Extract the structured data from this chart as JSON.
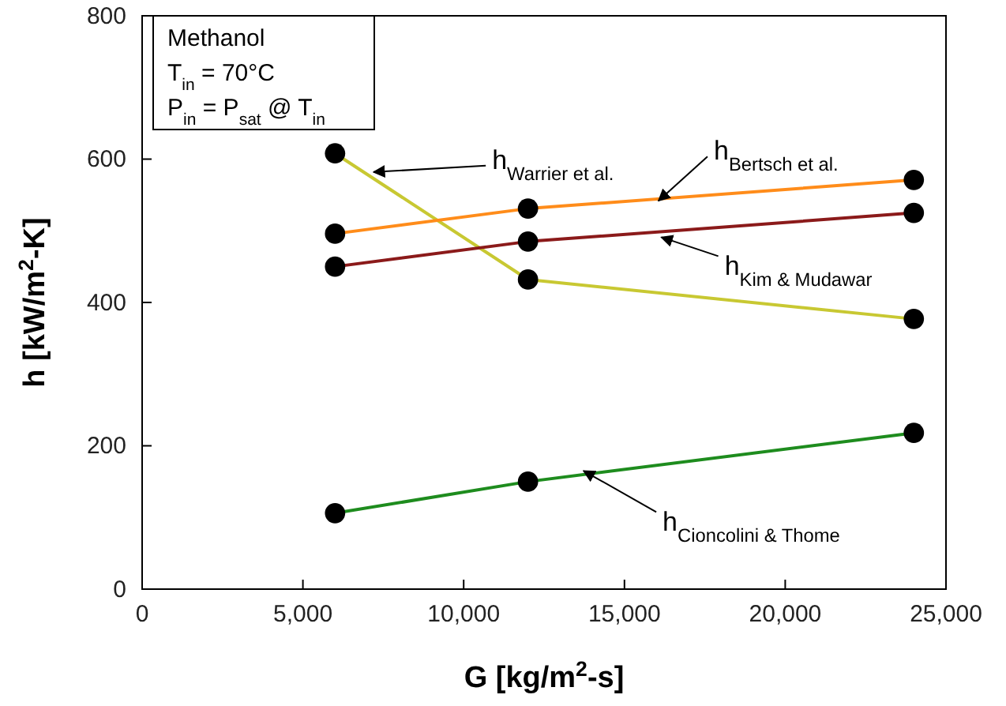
{
  "chart_data": {
    "type": "line",
    "xlabel": "G [kg/m$^{2}$-s]",
    "ylabel": "h [kW/m$^{2}$-K]",
    "series": [
      {
        "color": "#c8c832",
        "x": [
          6000,
          12000,
          24000
        ],
        "values": [
          608,
          432,
          377
        ]
      },
      {
        "color": "#ff8c1a",
        "x": [
          6000,
          12000,
          24000
        ],
        "values": [
          496,
          531,
          571
        ]
      },
      {
        "color": "#8b1a1a",
        "x": [
          6000,
          12000,
          24000
        ],
        "values": [
          450,
          485,
          525
        ]
      },
      {
        "color": "#1e8c1e",
        "x": [
          6000,
          12000,
          24000
        ],
        "values": [
          106,
          150,
          218
        ]
      }
    ],
    "marker": "circle",
    "line_style": "solid",
    "grid": false,
    "xlim": [
      0,
      25000
    ],
    "ylim": [
      0,
      800
    ],
    "xticks": [
      0,
      {
        "value": 5000,
        "label": "5,000"
      },
      {
        "value": 10000,
        "label": "10,000"
      },
      {
        "value": 15000,
        "label": "15,000"
      },
      {
        "value": 20000,
        "label": "20,000"
      },
      {
        "value": 25000,
        "label": "25,000"
      }
    ],
    "yticks": [
      0,
      200,
      400,
      600,
      800
    ],
    "annotations": [
      "Methanol",
      "T$_{in}$ = 70°C",
      "P$_{in}$ = P$_{sat}$ @ T$_{in}$",
      {
        "text": "h$_{Warrier et al.}$",
        "x": 7200,
        "y": 582
      },
      {
        "text": "h$_{Bertsch et al.}$",
        "x": 16060,
        "y": 542
      },
      {
        "text": "h$_{Kim & Mudawar}$",
        "x": 16150,
        "y": 491
      },
      {
        "text": "h$_{Cioncolini  & Thome}$",
        "x": 13730,
        "y": 165
      }
    ]
  }
}
